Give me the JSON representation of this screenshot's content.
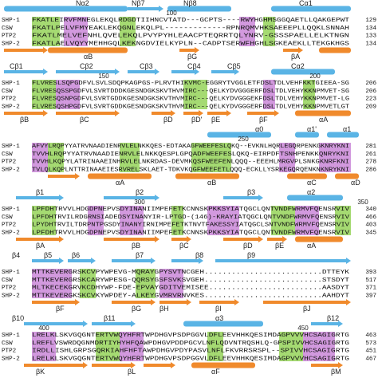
{
  "blocks": [
    {
      "top_labels": [
        "Nα2",
        "Nβ7",
        "Nβ8",
        "Cα1"
      ],
      "ruler": [
        100
      ],
      "rows": [
        {
          "name": "SHP-1",
          "sequence": "FKATLEIRVFMNEGLEKQLRDGDTIIHNCVTATD---GCPTS----RWYHGHMSGGQAETLLQAKGEPWT",
          "end": 129
        },
        {
          "name": "CSW",
          "sequence": "FKATLPELVFMYEAKLEKQGNLEKQLPL-------------RPNRQMVHKSAEEEPLLQQKLSNNAH",
          "end": 134
        },
        {
          "name": "PTP2",
          "sequence": "FKATLMELVEFNHLQVELEKQLPVYPYHLEAACPTEQRRTQLYNRV-GSSSPAELLELKTNGN",
          "end": 133
        },
        {
          "name": "SHP-2",
          "sequence": "FKATLAELVQYYMEHHGQLKEKNGDVIELKYPLN--CADPTSERWFHGHLSGKEAEKLLTEKGKHGS",
          "end": 134
        }
      ],
      "bottom_labels": [
        "αB",
        "βG",
        "βA"
      ]
    },
    {
      "top_labels": [
        "Cβ1",
        "Cβ2",
        "Cβ3",
        "Cβ4",
        "Cβ5",
        "Cα2"
      ],
      "ruler": [
        150,
        200
      ],
      "rows": [
        {
          "name": "SHP-1",
          "sequence": "FLVRESLSQPGDFVLSVLSDQPKAGPGS-PLRVTHIKVMC-EGGRYTVGGLETFDSLTDLVEHFKKTGIEEA-SG",
          "end": 206
        },
        {
          "name": "CSW",
          "sequence": "FLVRESQSSPGDFVLSVRTDDDKGESNDGKSKVTHVMIRC---QELKYDVGGGERFDSLTDLVEHYKKNPMVET-SG",
          "end": 206
        },
        {
          "name": "PTP2",
          "sequence": "FLVRESQSNPGDFVLSVRTGDDKGESNDGKSKVTHVMIRC---QELKYDVGGGEKFDSLTDLVEHYKKNPMVET-LG",
          "end": 223
        },
        {
          "name": "SHP-2",
          "sequence": "FLVRESQSHPGDFVLSVRTGDDKGESNDGKSKVTHVMIRC---QELKYDVGGGERFDSLTDLVEHYKKNPMVETLGT",
          "end": 209
        }
      ],
      "bottom_labels": [
        "βB",
        "βC",
        "βD",
        "βD'",
        "βE",
        "βF",
        "αA"
      ]
    },
    {
      "top_labels": [
        "α0",
        "α1'",
        "α1"
      ],
      "ruler": [
        250
      ],
      "rows": [
        {
          "name": "SHP-1",
          "sequence": "AFVYLRQPYYATRVNAADIENRVLELNKKQES-EDTAKAGFWEEFESLQKQ--EVKNLHQRLEGQRPENKGKNRYKNI",
          "end": 281
        },
        {
          "name": "CSW",
          "sequence": "TVVHLRQPYYATRVNAADIENRVLELNKKQESPLGPQADFWEEFESLQKQ-EIRPDFTSNHPENKKQNRYKNI",
          "end": 261
        },
        {
          "name": "PTP2",
          "sequence": "TVVHLKQPYLATRINAAEINHRVLELNKRDAS-DEVMKQSFWEEFENLQQQ--EEEHLMRGVPLSNKGKNRFKNI",
          "end": 278
        },
        {
          "name": "SHP-2",
          "sequence": "TVLQLKQPLNTTRINAAEIESRVRELSKLAET-TDKVKQGFWEEFETLQQQ-ECKLLYSRKEGQRQENKNKNRYKNI",
          "end": 286
        }
      ],
      "bottom_labels": [
        "αA",
        "αB",
        "αC",
        "αD"
      ]
    },
    {
      "top_labels": [
        "β1",
        "β2",
        "β3",
        "α2"
      ],
      "ruler": [
        300,
        350
      ],
      "rows": [
        {
          "name": "SHP-1",
          "sequence": "LPFDHTRVVLHDGDPNEPVSDYINANIIMPEFETKCNNSKPKKSYIATQGCLQNTVNDFWRMVFQENSRVIV",
          "end": 340
        },
        {
          "name": "CSW",
          "sequence": "LPFDHTRVILRDGRNSIADEDSYINANYIR-LPTGD-(146)-KRAYIATQGCLQNTVNDFWRMVFQENSRVIV",
          "end": 466
        },
        {
          "name": "PTP2",
          "sequence": "LPYDHTRVILTDRPNTPGSDYINANYIRNIMPEFETKTNVTFAKESSYIATQGCLSNTVNDFWRMVFQENSRVIV",
          "end": 403
        },
        {
          "name": "SHP-2",
          "sequence": "LPFDHTRVVLHDGDPNEPVSDYINANIIMPEFETKCNNSKPKKSYIATQGCLQNTVNDFWRMVFQENSRVIV",
          "end": 345
        }
      ],
      "bottom_labels": [
        "βA",
        "βB",
        "βC",
        "βD",
        "βE",
        "αA"
      ]
    },
    {
      "top_labels": [
        "β4",
        "β5",
        "β6",
        "β7",
        "β8",
        "β9"
      ],
      "ruler": [],
      "rows": [
        {
          "name": "SHP-1",
          "sequence": "MTTKEVERGRSKCVPYWPEVG-MQRAYGPYSVTNCGEH..........................DTTEYK",
          "end": 393
        },
        {
          "name": "CSW",
          "sequence": "MTTKEVERGRSKCARYWPESG-QQRSYGSFSVKSVGEH..........................STSDYT",
          "end": 517
        },
        {
          "name": "PTP2",
          "sequence": "MLTKECEKGRVKCDHYWP-FDE-EPVAYGDITVEMISEE.........................AASDYT",
          "end": 371
        },
        {
          "name": "SHP-2",
          "sequence": "MTTKEVERGKSKCVKYWPDEY-ALKEYGVMRVRNVKES..........................AAHDYT",
          "end": 397
        }
      ],
      "bottom_labels": [
        "βF",
        "βG",
        "βH",
        "βI",
        "βJ"
      ]
    },
    {
      "top_labels": [
        "β10",
        "β11",
        "α3",
        "β12"
      ],
      "ruler": [
        400,
        450
      ],
      "rows": [
        {
          "name": "SHP-1",
          "sequence": "LRELKLSKVGQGNTERTVWQYHFRTWPDHGVPSDPGGVLDFLEEVHHKQESIMDAGPVVVHCSAGIGRTG",
          "end": 463
        },
        {
          "name": "CSW",
          "sequence": "LREFLVSWRDQGNMDRTIYHYHFQAWPDHGVPDDPGCVLNFLQDVNTRQSHLQ-GPSPIVVHCSAGIGRTG",
          "end": 573
        },
        {
          "name": "PTP2",
          "sequence": "IRDLLISHLGRPSGQRKIAHFHFTAWPDHGVPDYPASVLNFLFKVRRSRSPL--SPIVVHCSAGIGRTG",
          "end": 451
        },
        {
          "name": "SHP-2",
          "sequence": "LRELKLSKVGQGNTERTVWQYHFRTWPDHGVPSDPGGVLDFLEEVHHKQESIMDAGPVVVHCSAGIGRTG",
          "end": 467
        }
      ],
      "bottom_labels": [
        "βK",
        "βL",
        "αF",
        "βM"
      ]
    }
  ]
}
